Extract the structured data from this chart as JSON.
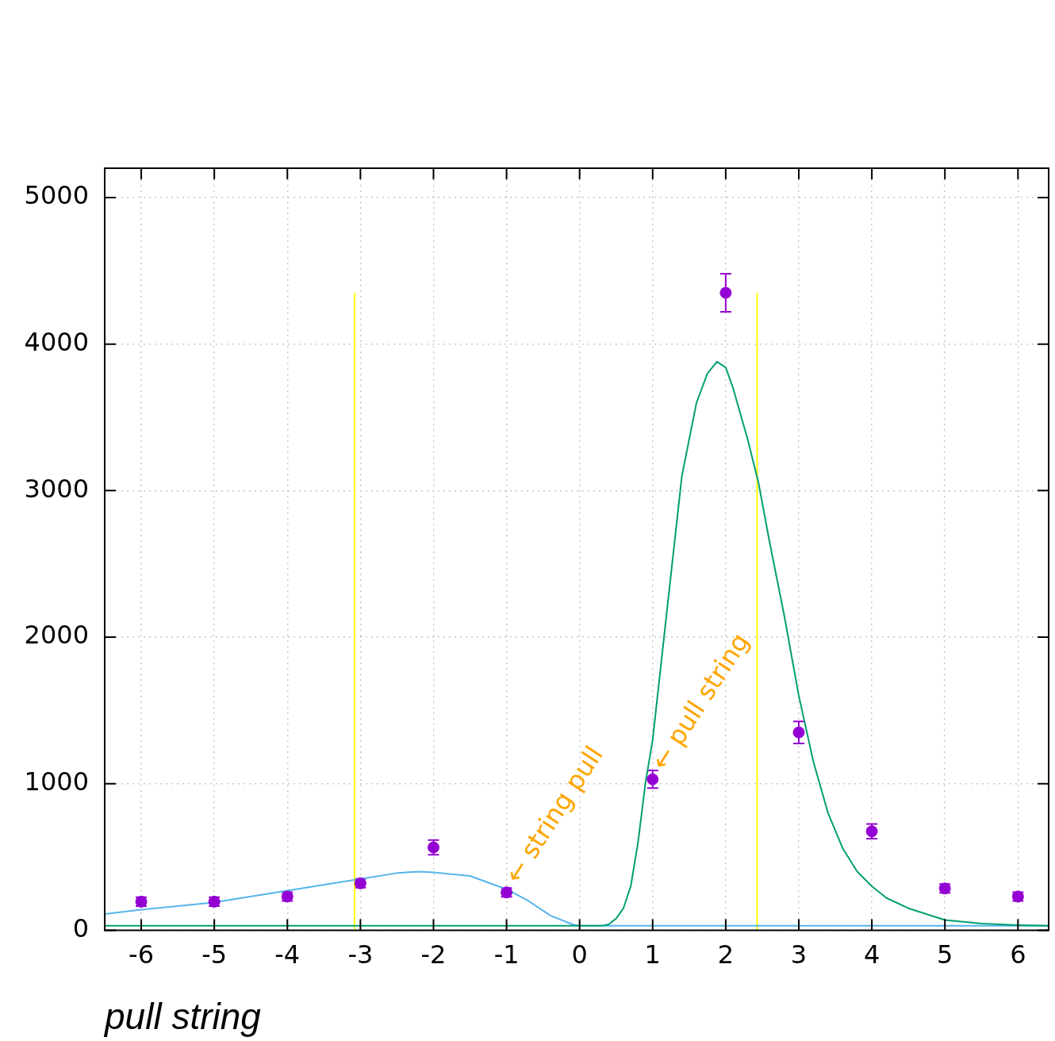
{
  "chart_data": {
    "type": "scatter",
    "xlabel": "pull string",
    "xlim": [
      -6.5,
      6.42
    ],
    "ylim": [
      0,
      5200
    ],
    "xticks": [
      -6,
      -5,
      -4,
      -3,
      -2,
      -1,
      0,
      1,
      2,
      3,
      4,
      5,
      6
    ],
    "yticks": [
      0,
      1000,
      2000,
      3000,
      4000,
      5000
    ],
    "grid": true,
    "legend": false,
    "series": [
      {
        "color": "#9400d3",
        "x": [
          -6,
          -5,
          -4,
          -3,
          -2,
          -1,
          1,
          2,
          3,
          4,
          5,
          6
        ],
        "values": [
          195,
          195,
          230,
          320,
          565,
          258,
          1030,
          4350,
          1350,
          675,
          285,
          230
        ],
        "errors": [
          30,
          30,
          30,
          30,
          50,
          30,
          60,
          130,
          75,
          50,
          30,
          30
        ]
      },
      {
        "type": "line",
        "color": "#009e73",
        "x": [
          -6.5,
          0,
          0.3,
          0.4,
          0.5,
          0.6,
          0.7,
          0.8,
          0.9,
          1.0,
          1.2,
          1.4,
          1.6,
          1.75,
          1.88,
          2.0,
          2.1,
          2.3,
          2.45,
          2.6,
          2.8,
          3.0,
          3.2,
          3.4,
          3.6,
          3.8,
          4.0,
          4.2,
          4.5,
          5.0,
          5.5,
          6.0,
          6.42
        ],
        "values": [
          30,
          30,
          30,
          40,
          80,
          150,
          300,
          600,
          1000,
          1300,
          2200,
          3100,
          3600,
          3800,
          3880,
          3840,
          3700,
          3350,
          3050,
          2650,
          2150,
          1600,
          1150,
          800,
          560,
          400,
          300,
          220,
          150,
          70,
          45,
          35,
          30
        ]
      },
      {
        "type": "line",
        "color": "#56b4e9",
        "x": [
          -6.5,
          -6,
          -5,
          -4,
          -3,
          -2.5,
          -2.2,
          -2,
          -1.5,
          -1,
          -0.7,
          -0.4,
          -0.1,
          0,
          6.42
        ],
        "values": [
          110,
          140,
          190,
          270,
          350,
          390,
          400,
          395,
          370,
          280,
          200,
          100,
          40,
          30,
          30
        ]
      },
      {
        "type": "line",
        "color": "#ffff00",
        "x": [
          -3.08,
          -3.08
        ],
        "values": [
          0,
          4350
        ]
      },
      {
        "type": "line",
        "color": "#ffff00",
        "x": [
          2.43,
          2.43
        ],
        "values": [
          0,
          4350
        ]
      }
    ],
    "annotations": [
      {
        "text": "← string pull",
        "x": -1,
        "y": 258
      },
      {
        "text": "← pull string",
        "x": 1,
        "y": 1030
      }
    ]
  }
}
